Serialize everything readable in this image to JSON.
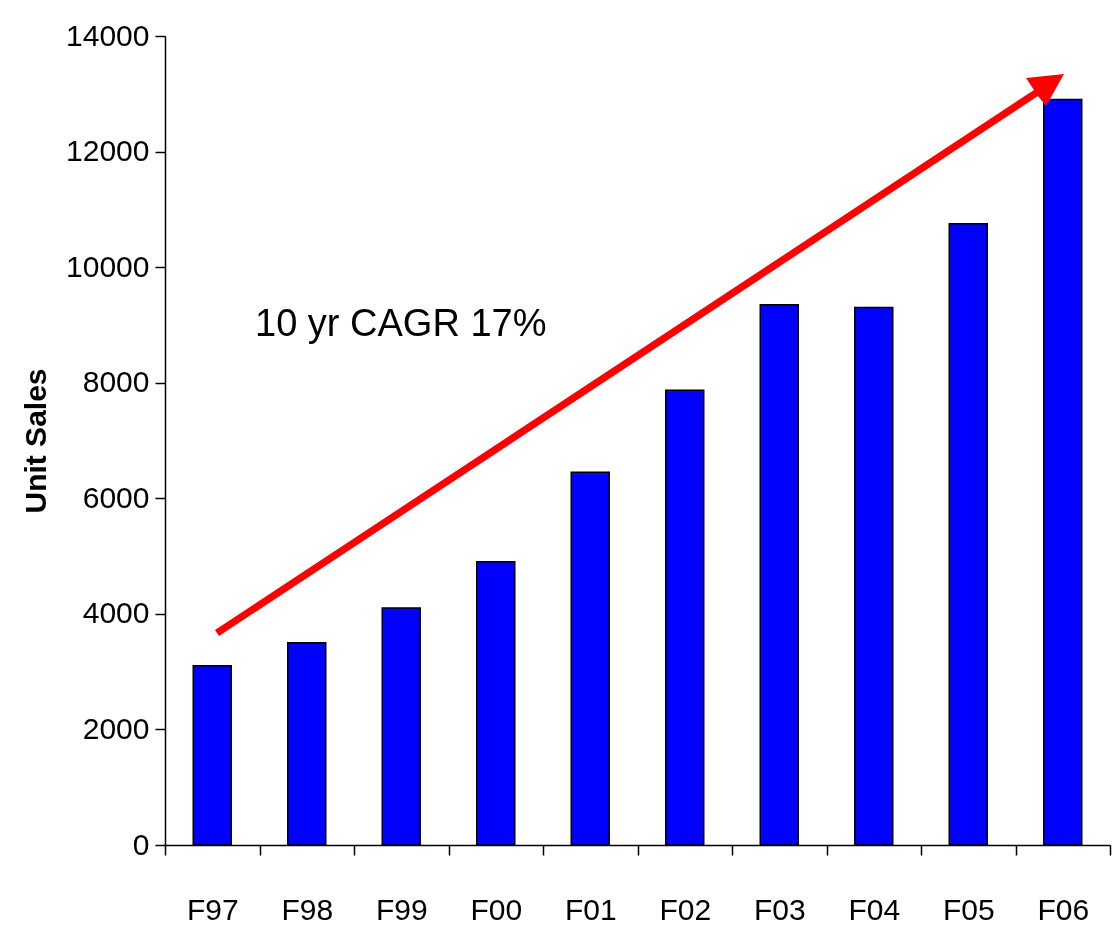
{
  "chart_data": {
    "type": "bar",
    "ylabel": "Unit Sales",
    "categories": [
      "F97",
      "F98",
      "F99",
      "F00",
      "F01",
      "F02",
      "F03",
      "F04",
      "F05",
      "F06"
    ],
    "values": [
      3100,
      3500,
      4100,
      4900,
      6450,
      7870,
      9350,
      9300,
      10750,
      12900
    ],
    "color": "#0000ff",
    "ylim": [
      0,
      14000
    ],
    "yticks": [
      0,
      2000,
      4000,
      6000,
      8000,
      10000,
      12000,
      14000
    ],
    "grid": false,
    "annotations": [
      "10 yr CAGR 17%"
    ]
  }
}
